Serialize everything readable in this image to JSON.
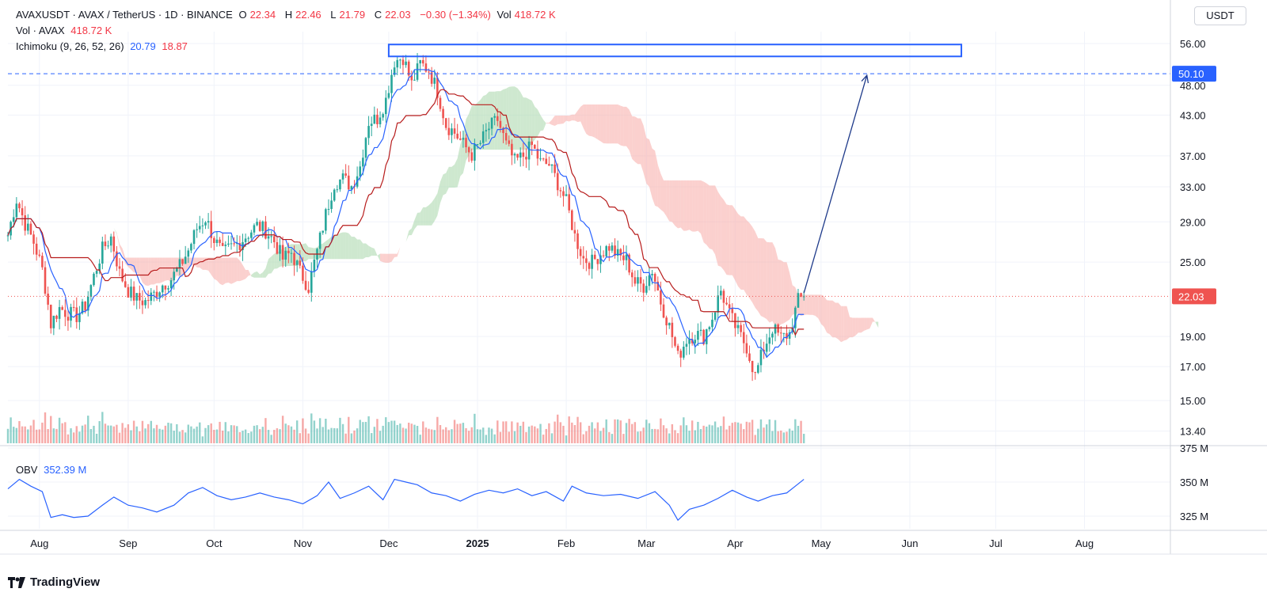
{
  "header": {
    "symbol_line": "AVAXUSDT · AVAX / TetherUS · 1D · BINANCE",
    "o_label": "O",
    "o_value": "22.34",
    "h_label": "H",
    "h_value": "22.46",
    "l_label": "L",
    "l_value": "21.79",
    "c_label": "C",
    "c_value": "22.03",
    "change": "−0.30 (−1.34%)",
    "vol_label": "Vol",
    "vol_value": "418.72 K",
    "vol_line_label": "Vol · AVAX",
    "vol_line_value": "418.72 K",
    "ichimoku_label": "Ichimoku (9, 26, 52, 26)",
    "ichimoku_v1": "20.79",
    "ichimoku_v2": "18.87"
  },
  "currency_unit": "USDT",
  "obv": {
    "label": "OBV",
    "value": "352.39 M"
  },
  "branding": {
    "name": "TradingView"
  },
  "colors": {
    "up": "#26a69a",
    "down": "#ef5350",
    "conversion": "#2962ff",
    "base": "#b71c1c",
    "cloud_bull": "#a5d6a7",
    "cloud_bear": "#f8a9a5",
    "obv": "#2962ff",
    "target": "#2962ff"
  },
  "chart_data": [
    {
      "type": "candlestick",
      "title": "AVAXUSDT · AVAX / TetherUS · 1D · BINANCE",
      "y_scale": "log",
      "y_ticks": [
        56.0,
        48.0,
        43.0,
        37.0,
        33.0,
        29.0,
        25.0,
        19.0,
        17.0,
        15.0,
        13.4
      ],
      "y_tick_labels": [
        "56.00",
        "48.00",
        "43.00",
        "37.00",
        "33.00",
        "29.00",
        "25.00",
        "19.00",
        "17.00",
        "15.00",
        "13.40"
      ],
      "x_ticks": [
        "Aug",
        "Sep",
        "Oct",
        "Nov",
        "Dec",
        "2025",
        "Feb",
        "Mar",
        "Apr",
        "May",
        "Jun",
        "Jul",
        "Aug"
      ],
      "x_range": [
        "2024-07-21",
        "2025-08-31"
      ],
      "last_price": {
        "value": 22.03,
        "label": "22.03"
      },
      "target_level": {
        "value": 50.1,
        "label": "50.10"
      },
      "resistance_zone": {
        "from_date": "2024-12-01",
        "to_date": "2025-06-19",
        "low": 53.4,
        "high": 55.8
      },
      "projection_arrow": {
        "from_date": "2025-04-25",
        "from_price": 22.3,
        "to_date": "2025-05-17",
        "to_price": 49.8
      },
      "ichimoku": {
        "conversion_last": 20.79,
        "base_last": 18.87
      },
      "price_path": [
        [
          "2024-07-21",
          27.6
        ],
        [
          "2024-07-24",
          31.5
        ],
        [
          "2024-07-27",
          28.8
        ],
        [
          "2024-07-30",
          26.9
        ],
        [
          "2024-08-02",
          24.3
        ],
        [
          "2024-08-05",
          19.9
        ],
        [
          "2024-08-08",
          21.1
        ],
        [
          "2024-08-11",
          20.7
        ],
        [
          "2024-08-14",
          20.5
        ],
        [
          "2024-08-17",
          21.3
        ],
        [
          "2024-08-20",
          23.7
        ],
        [
          "2024-08-23",
          26.2
        ],
        [
          "2024-08-26",
          27.4
        ],
        [
          "2024-08-29",
          24.0
        ],
        [
          "2024-09-01",
          22.5
        ],
        [
          "2024-09-04",
          21.8
        ],
        [
          "2024-09-07",
          21.6
        ],
        [
          "2024-09-10",
          22.2
        ],
        [
          "2024-09-13",
          23.0
        ],
        [
          "2024-09-16",
          23.5
        ],
        [
          "2024-09-19",
          24.6
        ],
        [
          "2024-09-22",
          26.1
        ],
        [
          "2024-09-25",
          28.3
        ],
        [
          "2024-09-28",
          29.4
        ],
        [
          "2024-10-01",
          27.2
        ],
        [
          "2024-10-04",
          25.8
        ],
        [
          "2024-10-07",
          26.4
        ],
        [
          "2024-10-10",
          26.9
        ],
        [
          "2024-10-13",
          27.8
        ],
        [
          "2024-10-16",
          28.6
        ],
        [
          "2024-10-19",
          28.1
        ],
        [
          "2024-10-22",
          27.0
        ],
        [
          "2024-10-25",
          25.3
        ],
        [
          "2024-10-28",
          25.9
        ],
        [
          "2024-10-31",
          24.1
        ],
        [
          "2024-11-03",
          22.8
        ],
        [
          "2024-11-06",
          26.0
        ],
        [
          "2024-11-09",
          29.8
        ],
        [
          "2024-11-12",
          33.5
        ],
        [
          "2024-11-15",
          34.0
        ],
        [
          "2024-11-18",
          33.1
        ],
        [
          "2024-11-21",
          35.6
        ],
        [
          "2024-11-24",
          42.0
        ],
        [
          "2024-11-27",
          42.5
        ],
        [
          "2024-11-30",
          45.5
        ],
        [
          "2024-12-03",
          52.5
        ],
        [
          "2024-12-06",
          53.3
        ],
        [
          "2024-12-09",
          48.2
        ],
        [
          "2024-12-12",
          52.0
        ],
        [
          "2024-12-15",
          50.8
        ],
        [
          "2024-12-18",
          47.0
        ],
        [
          "2024-12-21",
          41.5
        ],
        [
          "2024-12-24",
          40.3
        ],
        [
          "2024-12-27",
          38.6
        ],
        [
          "2024-12-30",
          37.2
        ],
        [
          "2025-01-02",
          38.8
        ],
        [
          "2025-01-05",
          41.0
        ],
        [
          "2025-01-08",
          42.3
        ],
        [
          "2025-01-11",
          38.5
        ],
        [
          "2025-01-14",
          36.2
        ],
        [
          "2025-01-17",
          37.0
        ],
        [
          "2025-01-20",
          38.4
        ],
        [
          "2025-01-23",
          36.1
        ],
        [
          "2025-01-26",
          35.8
        ],
        [
          "2025-01-29",
          33.5
        ],
        [
          "2025-02-01",
          31.2
        ],
        [
          "2025-02-04",
          27.5
        ],
        [
          "2025-02-07",
          25.3
        ],
        [
          "2025-02-10",
          25.0
        ],
        [
          "2025-02-13",
          25.8
        ],
        [
          "2025-02-16",
          26.5
        ],
        [
          "2025-02-19",
          25.6
        ],
        [
          "2025-02-22",
          25.2
        ],
        [
          "2025-02-25",
          23.2
        ],
        [
          "2025-02-28",
          22.9
        ],
        [
          "2025-03-03",
          24.3
        ],
        [
          "2025-03-06",
          21.6
        ],
        [
          "2025-03-09",
          19.7
        ],
        [
          "2025-03-12",
          17.6
        ],
        [
          "2025-03-15",
          18.8
        ],
        [
          "2025-03-18",
          19.2
        ],
        [
          "2025-03-21",
          19.0
        ],
        [
          "2025-03-24",
          20.4
        ],
        [
          "2025-03-27",
          22.5
        ],
        [
          "2025-03-30",
          20.6
        ],
        [
          "2025-04-02",
          19.3
        ],
        [
          "2025-04-05",
          18.3
        ],
        [
          "2025-04-08",
          16.4
        ],
        [
          "2025-04-11",
          18.2
        ],
        [
          "2025-04-14",
          19.6
        ],
        [
          "2025-04-17",
          18.9
        ],
        [
          "2025-04-20",
          19.2
        ],
        [
          "2025-04-23",
          21.7
        ],
        [
          "2025-04-25",
          22.03
        ]
      ]
    },
    {
      "type": "line",
      "title": "OBV",
      "y_ticks": [
        375,
        350,
        325
      ],
      "y_tick_labels": [
        "375 M",
        "350 M",
        "325 M"
      ],
      "last_value": 352.39,
      "series": [
        [
          "2024-07-21",
          345
        ],
        [
          "2024-07-25",
          352
        ],
        [
          "2024-07-29",
          347
        ],
        [
          "2024-08-02",
          343
        ],
        [
          "2024-08-05",
          324
        ],
        [
          "2024-08-09",
          326
        ],
        [
          "2024-08-13",
          324
        ],
        [
          "2024-08-18",
          325
        ],
        [
          "2024-08-23",
          333
        ],
        [
          "2024-08-27",
          339
        ],
        [
          "2024-09-01",
          333
        ],
        [
          "2024-09-06",
          331
        ],
        [
          "2024-09-11",
          328
        ],
        [
          "2024-09-17",
          333
        ],
        [
          "2024-09-22",
          342
        ],
        [
          "2024-09-27",
          346
        ],
        [
          "2024-10-02",
          340
        ],
        [
          "2024-10-07",
          337
        ],
        [
          "2024-10-12",
          339
        ],
        [
          "2024-10-17",
          342
        ],
        [
          "2024-10-22",
          339
        ],
        [
          "2024-10-27",
          337
        ],
        [
          "2024-11-01",
          334
        ],
        [
          "2024-11-06",
          340
        ],
        [
          "2024-11-10",
          350
        ],
        [
          "2024-11-14",
          338
        ],
        [
          "2024-11-19",
          342
        ],
        [
          "2024-11-24",
          347
        ],
        [
          "2024-11-29",
          337
        ],
        [
          "2024-12-03",
          352
        ],
        [
          "2024-12-07",
          350
        ],
        [
          "2024-12-11",
          348
        ],
        [
          "2024-12-16",
          342
        ],
        [
          "2024-12-21",
          340
        ],
        [
          "2024-12-26",
          336
        ],
        [
          "2024-12-31",
          341
        ],
        [
          "2025-01-05",
          344
        ],
        [
          "2025-01-10",
          342
        ],
        [
          "2025-01-15",
          345
        ],
        [
          "2025-01-20",
          340
        ],
        [
          "2025-01-25",
          343
        ],
        [
          "2025-01-31",
          336
        ],
        [
          "2025-02-03",
          347
        ],
        [
          "2025-02-08",
          342
        ],
        [
          "2025-02-14",
          340
        ],
        [
          "2025-02-20",
          341
        ],
        [
          "2025-02-26",
          338
        ],
        [
          "2025-03-04",
          343
        ],
        [
          "2025-03-09",
          333
        ],
        [
          "2025-03-12",
          322
        ],
        [
          "2025-03-16",
          330
        ],
        [
          "2025-03-21",
          333
        ],
        [
          "2025-03-26",
          338
        ],
        [
          "2025-03-31",
          344
        ],
        [
          "2025-04-05",
          339
        ],
        [
          "2025-04-09",
          336
        ],
        [
          "2025-04-14",
          340
        ],
        [
          "2025-04-19",
          342
        ],
        [
          "2025-04-22",
          347
        ],
        [
          "2025-04-25",
          352
        ]
      ]
    }
  ]
}
